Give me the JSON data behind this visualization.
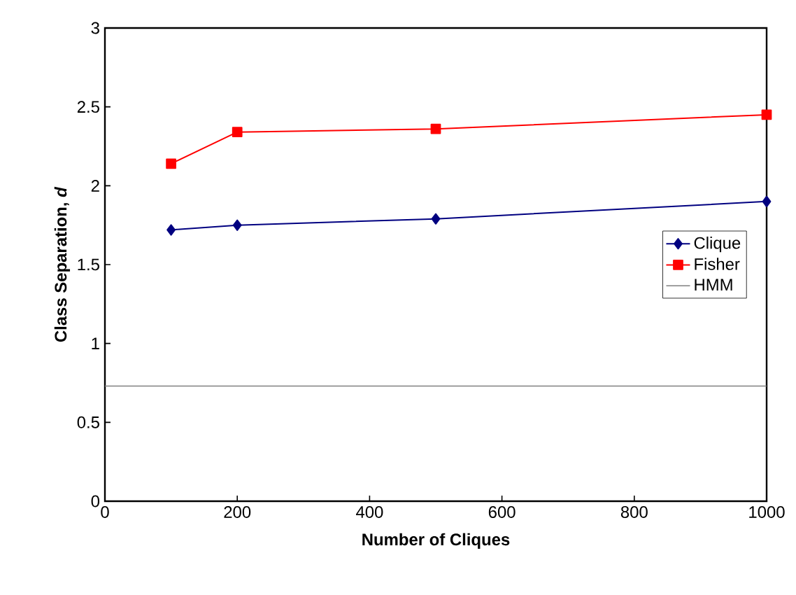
{
  "chart_data": {
    "type": "line",
    "xlabel": "Number of Cliques",
    "ylabel": "Class Separation, *d*",
    "xlim": [
      0,
      1000
    ],
    "xticks": [
      0,
      200,
      400,
      600,
      800,
      1000
    ],
    "ylim": [
      0,
      3
    ],
    "yticks": [
      0,
      0.5,
      1,
      1.5,
      2,
      2.5,
      3
    ],
    "grid": false,
    "legend": "right",
    "series": [
      {
        "name": "Clique",
        "color": "#000080",
        "marker": "diamond",
        "x": [
          100,
          200,
          500,
          1000
        ],
        "values": [
          1.72,
          1.75,
          1.79,
          1.9
        ]
      },
      {
        "name": "Fisher",
        "color": "#ff0000",
        "marker": "square",
        "x": [
          100,
          200,
          500,
          1000
        ],
        "values": [
          2.14,
          2.34,
          2.36,
          2.45
        ]
      },
      {
        "name": "HMM",
        "color": "#808080",
        "marker": "none",
        "x": [
          0,
          1000
        ],
        "values": [
          0.73,
          0.73
        ]
      }
    ]
  }
}
